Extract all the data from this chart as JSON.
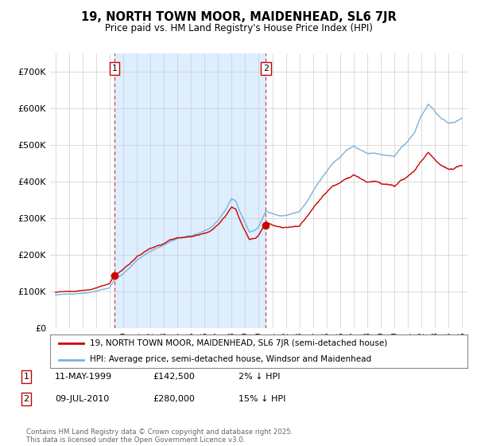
{
  "title": "19, NORTH TOWN MOOR, MAIDENHEAD, SL6 7JR",
  "subtitle": "Price paid vs. HM Land Registry's House Price Index (HPI)",
  "ylim": [
    0,
    750000
  ],
  "yticks": [
    0,
    100000,
    200000,
    300000,
    400000,
    500000,
    600000,
    700000
  ],
  "ytick_labels": [
    "£0",
    "£100K",
    "£200K",
    "£300K",
    "£400K",
    "£500K",
    "£600K",
    "£700K"
  ],
  "hpi_color": "#7ab3d9",
  "price_color": "#cc0000",
  "shade_color": "#ddeeff",
  "transaction1": {
    "date": "11-MAY-1999",
    "price": 142500,
    "label": "1",
    "year": 1999.36
  },
  "transaction2": {
    "date": "09-JUL-2010",
    "price": 280000,
    "label": "2",
    "year": 2010.52
  },
  "legend_price_label": "19, NORTH TOWN MOOR, MAIDENHEAD, SL6 7JR (semi-detached house)",
  "legend_hpi_label": "HPI: Average price, semi-detached house, Windsor and Maidenhead",
  "footnote": "Contains HM Land Registry data © Crown copyright and database right 2025.\nThis data is licensed under the Open Government Licence v3.0.",
  "table_rows": [
    {
      "num": "1",
      "date": "11-MAY-1999",
      "price": "£142,500",
      "note": "2% ↓ HPI"
    },
    {
      "num": "2",
      "date": "09-JUL-2010",
      "price": "£280,000",
      "note": "15% ↓ HPI"
    }
  ],
  "background_color": "#ffffff",
  "grid_color": "#cccccc"
}
